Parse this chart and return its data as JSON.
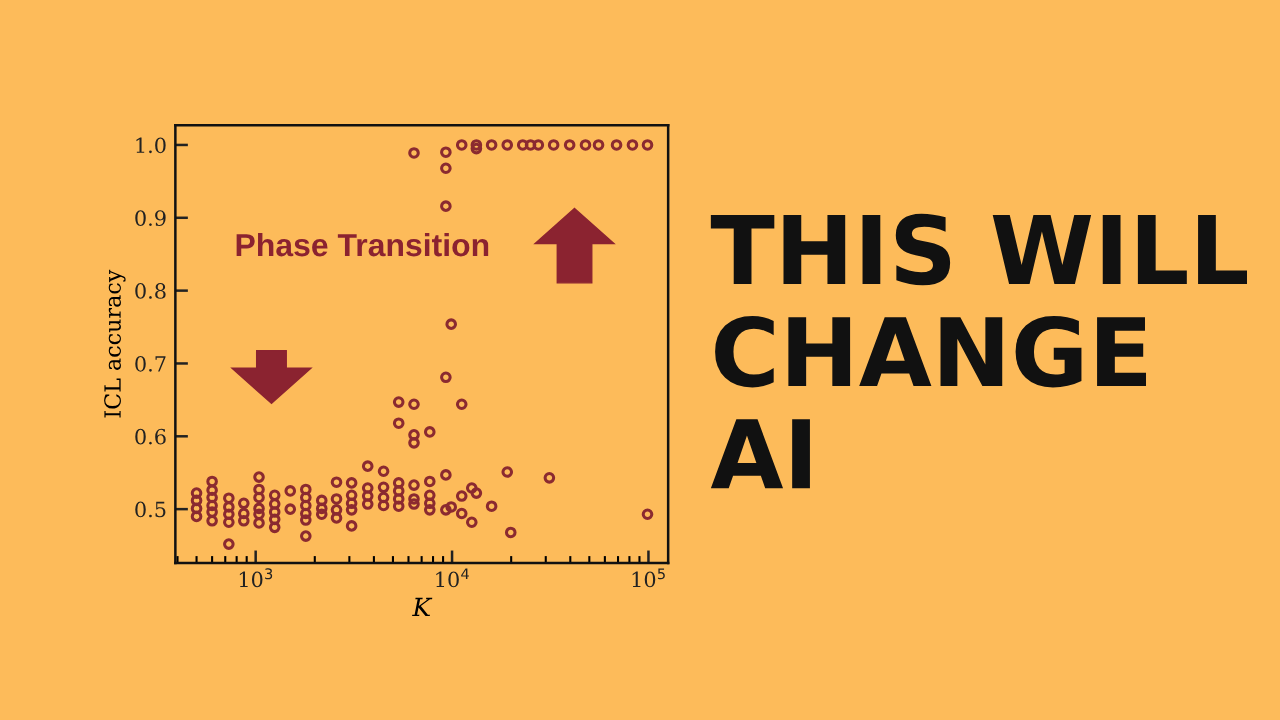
{
  "chart_data": {
    "type": "scatter",
    "title": "THIS WILL\nCHANGE\nAI",
    "xlabel": "K",
    "ylabel": "ICL accuracy",
    "annotations": [
      "Phase Transition"
    ],
    "marker": "circle",
    "log": "x",
    "grid": false,
    "legend": false,
    "xlim": [
      390,
      126000
    ],
    "xticks": [
      {
        "value": 1000,
        "label": "10$^{3}$"
      },
      {
        "value": 10000,
        "label": "10$^{4}$"
      },
      {
        "value": 100000,
        "label": "10$^{5}$"
      }
    ],
    "ylim": [
      0.426,
      1.027
    ],
    "yticks": [
      0.5,
      0.6,
      0.7,
      0.8,
      0.9,
      {
        "value": 1.0,
        "label": "1.0"
      }
    ],
    "series": [
      {
        "color": "#8b2a30",
        "x": [
          500,
          500,
          500,
          500,
          600,
          600,
          600,
          600,
          600,
          600,
          730,
          730,
          730,
          730,
          730,
          870,
          870,
          870,
          1040,
          1040,
          1040,
          1040,
          1040,
          1040,
          1250,
          1250,
          1250,
          1250,
          1250,
          1500,
          1500,
          1800,
          1800,
          1800,
          1800,
          1800,
          1800,
          2170,
          2170,
          2170,
          2580,
          2580,
          2580,
          2580,
          3080,
          3080,
          3080,
          3080,
          3080,
          3720,
          3720,
          3720,
          3720,
          4480,
          4480,
          4480,
          4480,
          5350,
          5350,
          5350,
          5350,
          5350,
          5350,
          6400,
          6400,
          6400,
          6400,
          6400,
          6400,
          6400,
          7700,
          7700,
          7700,
          7700,
          7700,
          9300,
          9300,
          9300,
          9300,
          9300,
          9300,
          9900,
          9900,
          11200,
          11200,
          11200,
          11200,
          12600,
          12600,
          13300,
          13300,
          13300,
          15900,
          15900,
          19100,
          19100,
          19900,
          22900,
          25100,
          27500,
          31300,
          32900,
          39700,
          47800,
          55700,
          68800,
          82900,
          98900,
          98900
        ],
        "values": [
          0.522,
          0.512,
          0.501,
          0.49,
          0.538,
          0.526,
          0.516,
          0.505,
          0.496,
          0.484,
          0.515,
          0.503,
          0.493,
          0.482,
          0.452,
          0.508,
          0.494,
          0.484,
          0.544,
          0.527,
          0.516,
          0.501,
          0.493,
          0.481,
          0.519,
          0.507,
          0.496,
          0.486,
          0.475,
          0.525,
          0.5,
          0.527,
          0.516,
          0.505,
          0.494,
          0.485,
          0.463,
          0.512,
          0.501,
          0.493,
          0.537,
          0.514,
          0.499,
          0.488,
          0.536,
          0.519,
          0.508,
          0.499,
          0.477,
          0.559,
          0.529,
          0.518,
          0.507,
          0.552,
          0.53,
          0.516,
          0.505,
          0.536,
          0.525,
          0.514,
          0.504,
          0.647,
          0.618,
          0.644,
          0.602,
          0.591,
          0.989,
          0.533,
          0.514,
          0.507,
          0.606,
          0.538,
          0.519,
          0.508,
          0.499,
          0.99,
          0.968,
          0.916,
          0.681,
          0.547,
          0.499,
          0.754,
          0.503,
          1.0,
          0.644,
          0.518,
          0.494,
          0.529,
          0.482,
          1.0,
          0.995,
          0.522,
          1.0,
          0.504,
          1.0,
          0.551,
          0.468,
          1.0,
          1.0,
          1.0,
          0.543,
          1.0,
          1.0,
          1.0,
          1.0,
          1.0,
          1.0,
          1.0,
          0.493
        ]
      }
    ]
  }
}
